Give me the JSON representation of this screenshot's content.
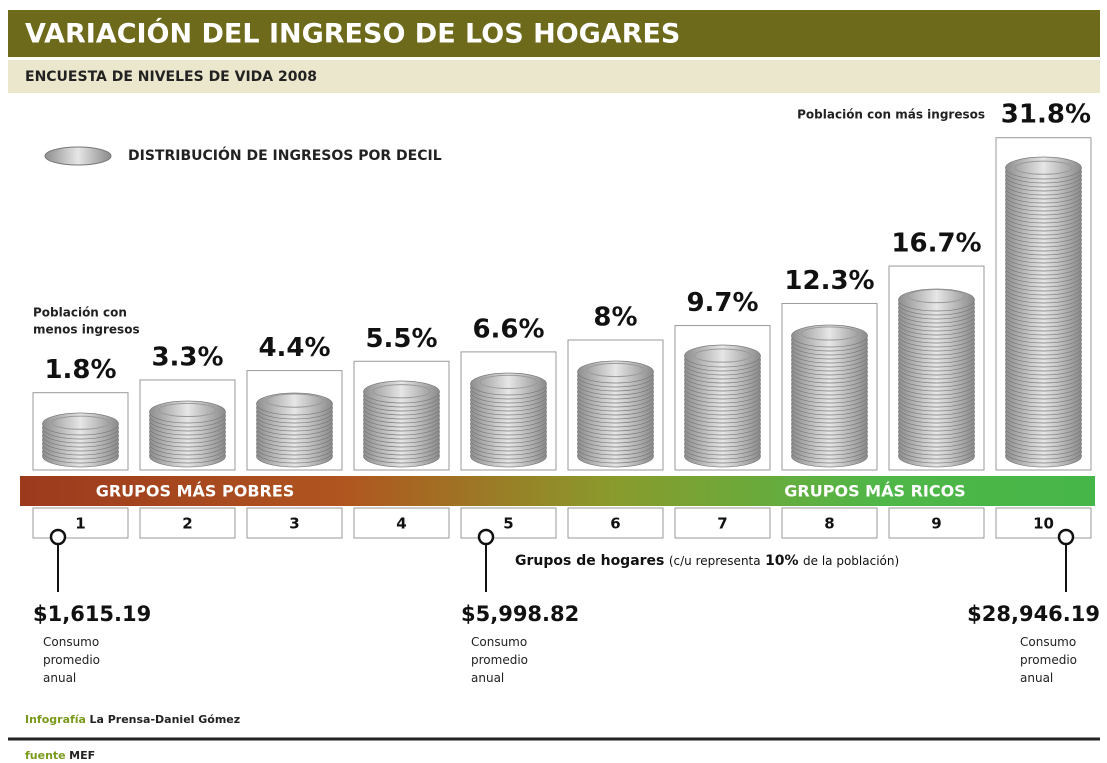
{
  "chart_data": {
    "type": "bar",
    "title": "VARIACIÓN DEL INGRESO DE LOS HOGARES",
    "subtitle": "ENCUESTA DE NIVELES DE VIDA 2008",
    "legend": "DISTRIBUCIÓN DE INGRESOS POR DECIL",
    "annotation_low": "Población con menos ingresos",
    "annotation_high": "Población con más ingresos",
    "band_left": "GRUPOS MÁS POBRES",
    "band_right": "GRUPOS MÁS RICOS",
    "x_label": [
      "Grupos de hogares",
      "(c/u representa",
      "10%",
      "de la población)"
    ],
    "categories": [
      "1",
      "2",
      "3",
      "4",
      "5",
      "6",
      "7",
      "8",
      "9",
      "10"
    ],
    "values": [
      1.8,
      3.3,
      4.4,
      5.5,
      6.6,
      8,
      9.7,
      12.3,
      16.7,
      31.8
    ],
    "value_labels": [
      "1.8%",
      "3.3%",
      "4.4%",
      "5.5%",
      "6.6%",
      "8%",
      "9.7%",
      "12.3%",
      "16.7%",
      "31.8%"
    ],
    "color": "#bdbdbd",
    "consumption": {
      "label": "Consumo promedio anual",
      "values": [
        1615.19,
        5998.82,
        28946.19
      ],
      "value_labels": [
        "$1,615.19",
        "$5,998.82",
        "$28,946.19"
      ]
    },
    "credit": {
      "key": "Infografía",
      "text": "La Prensa-Daniel Gómez"
    },
    "source": {
      "key": "fuente",
      "text": "MEF"
    }
  }
}
